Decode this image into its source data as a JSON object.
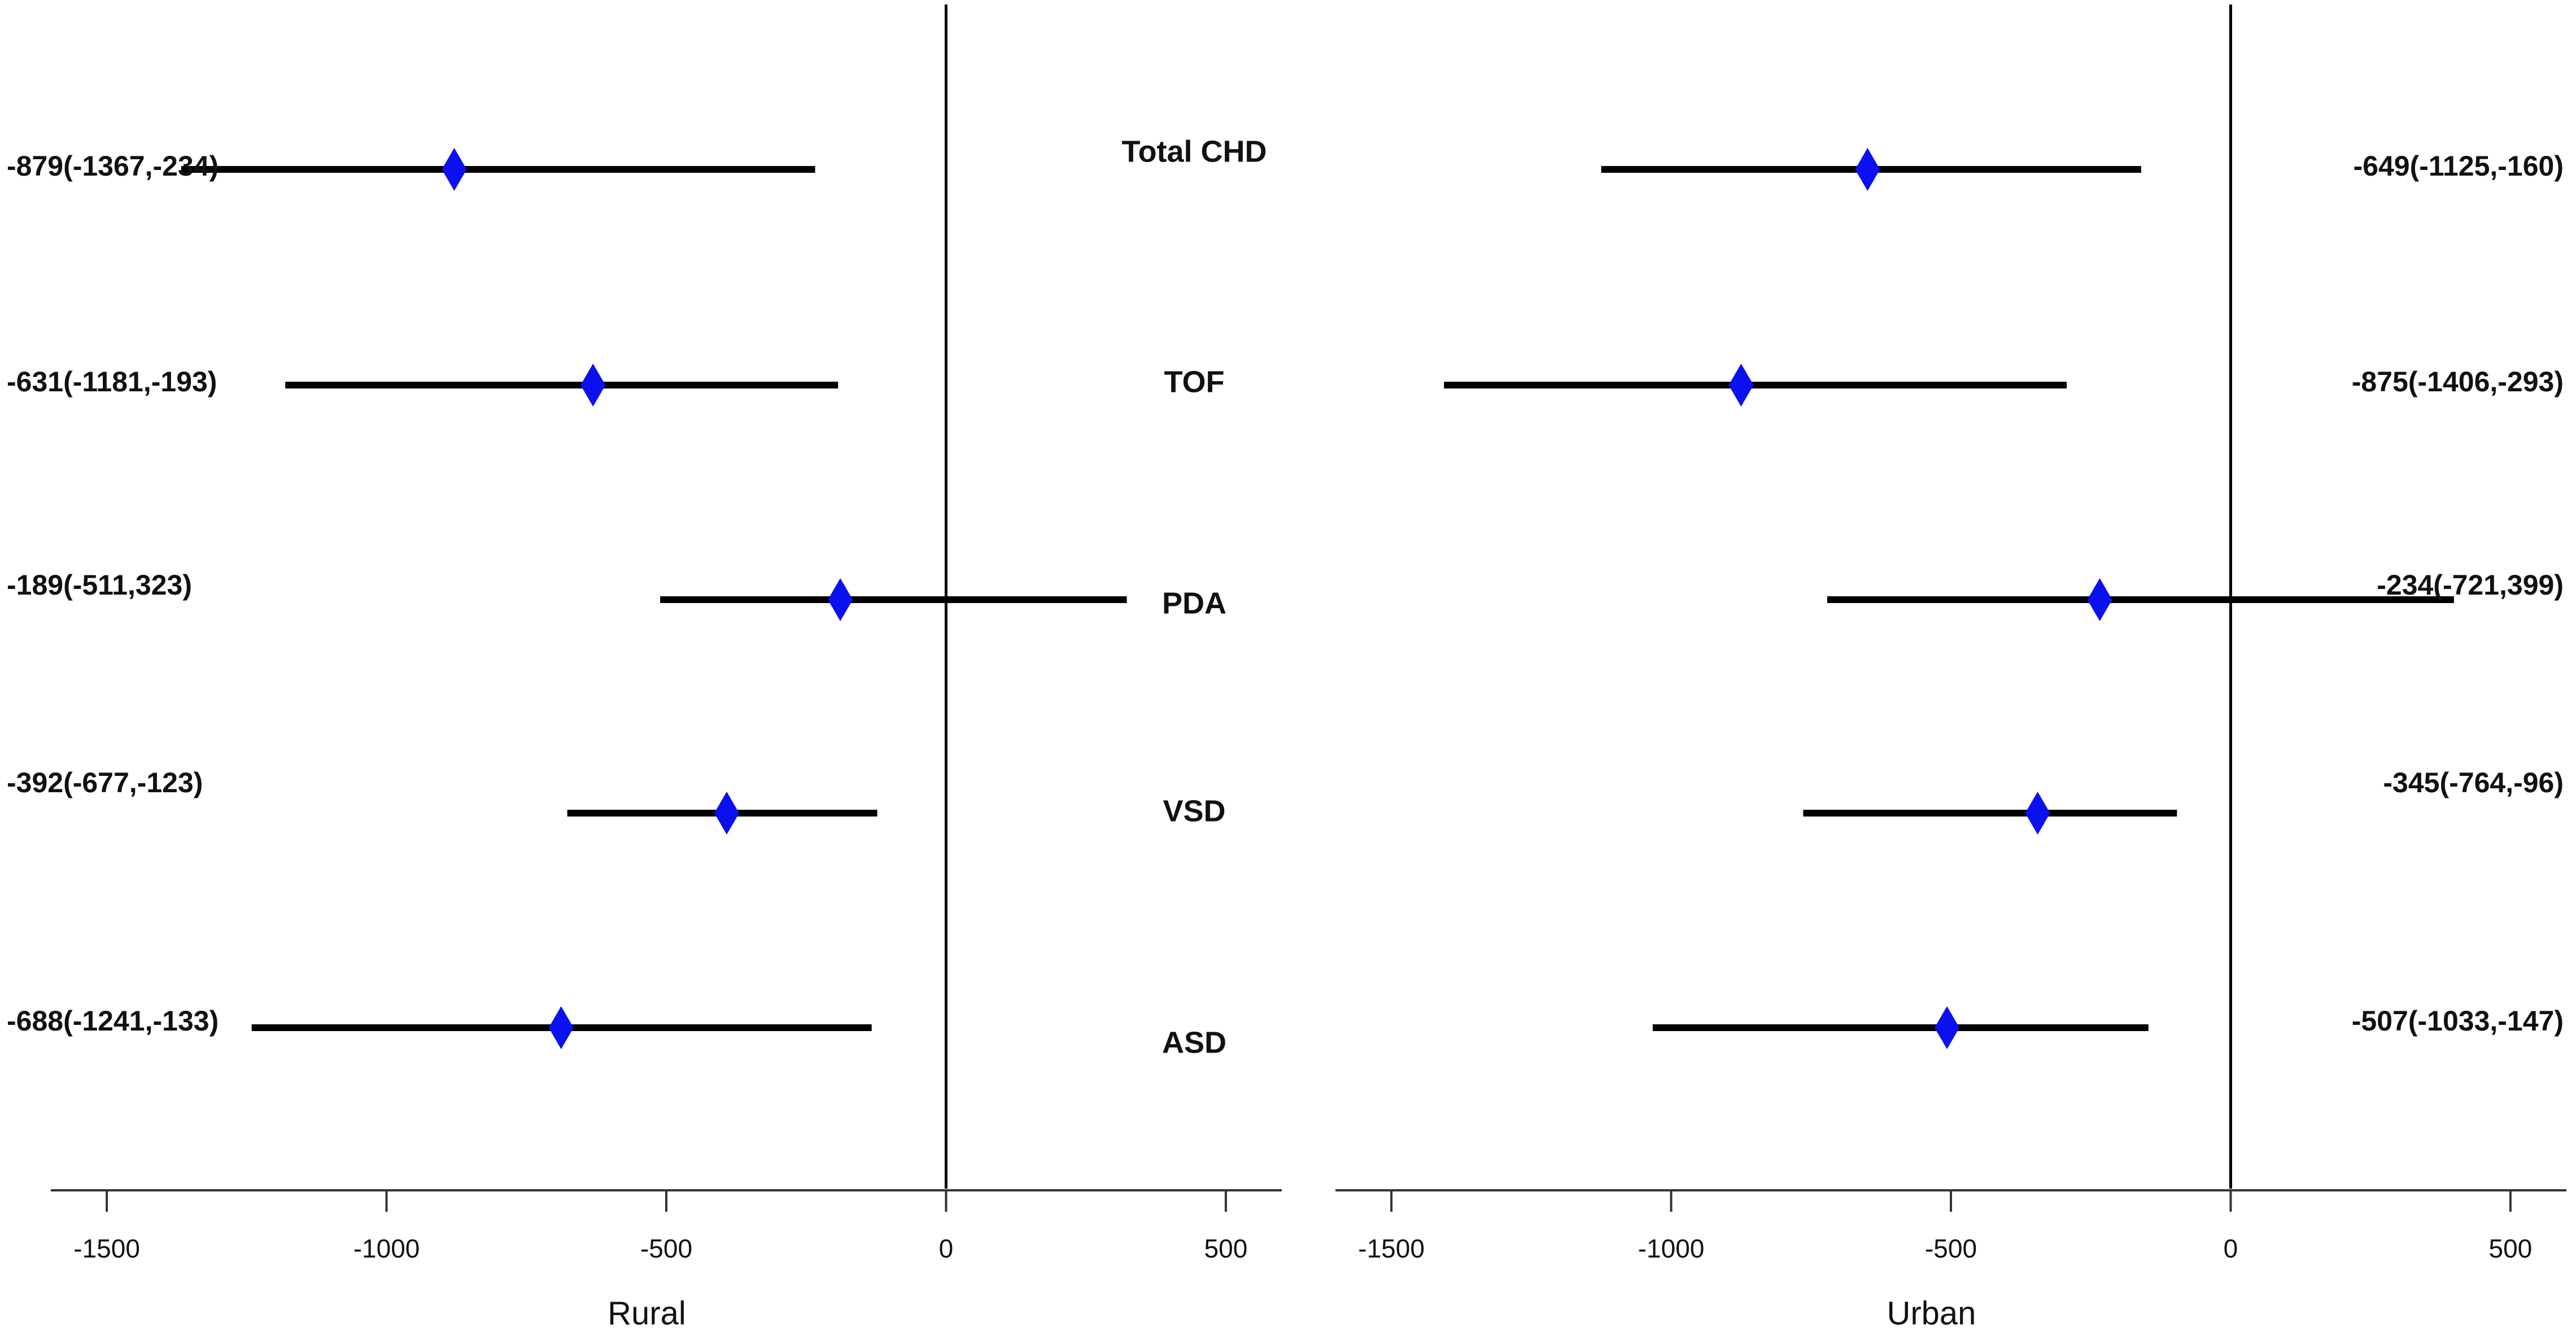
{
  "chart_data": {
    "type": "forest",
    "categories": [
      "Total CHD",
      "TOF",
      "PDA",
      "VSD",
      "ASD"
    ],
    "xlim": [
      -1600,
      600
    ],
    "xticks": [
      -1500,
      -1000,
      -500,
      0,
      500
    ],
    "xtick_labels": [
      "-1500",
      "-1000",
      "-500",
      "0",
      "500"
    ],
    "marker_color": "#0a10ee",
    "reference_value": 0,
    "panels": [
      {
        "xlabel": "Rural",
        "estimates": [
          {
            "category": "Total CHD",
            "value": -879,
            "lower": -1367,
            "upper": -234,
            "label": "-879(-1367,-234)"
          },
          {
            "category": "TOF",
            "value": -631,
            "lower": -1181,
            "upper": -193,
            "label": "-631(-1181,-193)"
          },
          {
            "category": "PDA",
            "value": -189,
            "lower": -511,
            "upper": 323,
            "label": "-189(-511,323)"
          },
          {
            "category": "VSD",
            "value": -392,
            "lower": -677,
            "upper": -123,
            "label": "-392(-677,-123)"
          },
          {
            "category": "ASD",
            "value": -688,
            "lower": -1241,
            "upper": -133,
            "label": "-688(-1241,-133)"
          }
        ]
      },
      {
        "xlabel": "Urban",
        "estimates": [
          {
            "category": "Total CHD",
            "value": -649,
            "lower": -1125,
            "upper": -160,
            "label": "-649(-1125,-160)"
          },
          {
            "category": "TOF",
            "value": -875,
            "lower": -1406,
            "upper": -293,
            "label": "-875(-1406,-293)"
          },
          {
            "category": "PDA",
            "value": -234,
            "lower": -721,
            "upper": 399,
            "label": "-234(-721,399)"
          },
          {
            "category": "VSD",
            "value": -345,
            "lower": -764,
            "upper": -96,
            "label": "-345(-764,-96)"
          },
          {
            "category": "ASD",
            "value": -507,
            "lower": -1033,
            "upper": -147,
            "label": "-507(-1033,-147)"
          }
        ]
      }
    ]
  }
}
